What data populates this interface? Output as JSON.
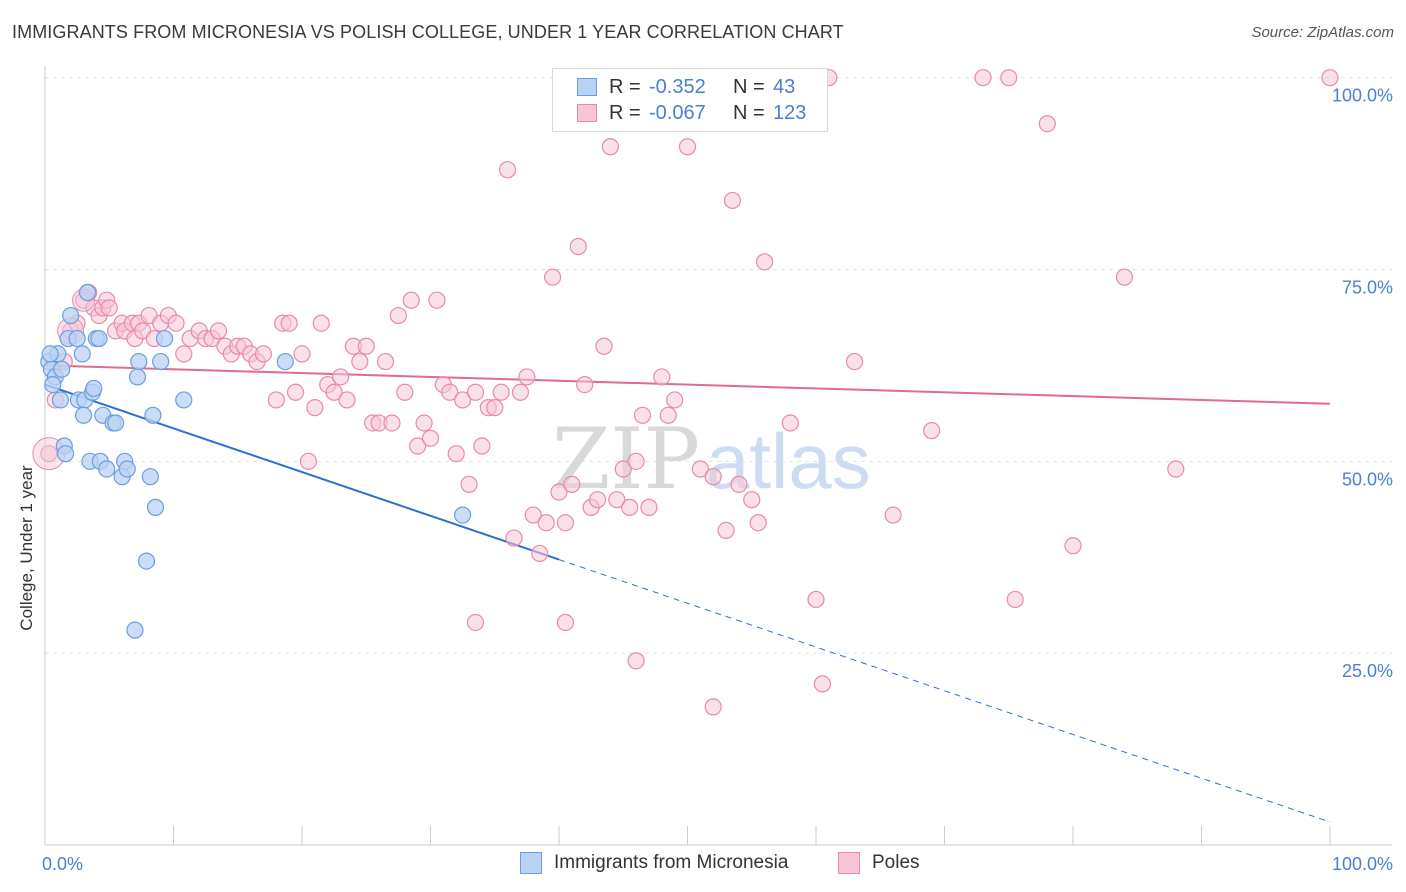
{
  "chart_data": {
    "type": "scatter",
    "title": "IMMIGRANTS FROM MICRONESIA VS POLISH COLLEGE, UNDER 1 YEAR CORRELATION CHART",
    "source": "Source: ZipAtlas.com",
    "xlabel": "",
    "ylabel": "College, Under 1 year",
    "xlim": [
      0,
      100
    ],
    "ylim": [
      0,
      101
    ],
    "x_tick_labels": [
      "0.0%",
      "100.0%"
    ],
    "y_ticks": [
      25,
      50,
      75,
      100
    ],
    "y_tick_labels": [
      "25.0%",
      "50.0%",
      "75.0%",
      "100.0%"
    ],
    "watermark": {
      "zip": "ZIP",
      "atlas": "atlas"
    },
    "legend": {
      "rows": [
        {
          "r_label": "R =",
          "r_value": "-0.352",
          "n_label": "N =",
          "n_value": "43"
        },
        {
          "r_label": "R =",
          "r_value": "-0.067",
          "n_label": "N =",
          "n_value": "123"
        }
      ]
    },
    "series": [
      {
        "name": "Immigrants from Micronesia",
        "color": "#6a9ee0",
        "fill": "#b9d1f3",
        "trend": {
          "x0": 0,
          "y0": 60,
          "x1": 40,
          "y1": 37.2,
          "dash_x1": 100,
          "dash_y1": 3.0,
          "color": "#2f6fd1"
        },
        "points": [
          [
            0.3,
            63
          ],
          [
            0.5,
            62
          ],
          [
            0.8,
            61
          ],
          [
            1.0,
            64
          ],
          [
            1.3,
            62
          ],
          [
            0.6,
            60
          ],
          [
            1.5,
            52
          ],
          [
            1.6,
            51
          ],
          [
            1.8,
            66
          ],
          [
            2.0,
            69
          ],
          [
            2.5,
            66
          ],
          [
            2.6,
            58
          ],
          [
            2.9,
            64
          ],
          [
            3.1,
            58
          ],
          [
            3.0,
            56
          ],
          [
            3.3,
            72
          ],
          [
            3.5,
            50
          ],
          [
            3.7,
            59
          ],
          [
            3.8,
            59.5
          ],
          [
            4.0,
            66
          ],
          [
            4.2,
            66
          ],
          [
            4.3,
            50
          ],
          [
            4.5,
            56
          ],
          [
            4.8,
            49
          ],
          [
            5.3,
            55
          ],
          [
            5.5,
            55
          ],
          [
            6.0,
            48
          ],
          [
            6.2,
            50
          ],
          [
            6.4,
            49
          ],
          [
            7.0,
            28
          ],
          [
            7.2,
            61
          ],
          [
            7.3,
            63
          ],
          [
            7.9,
            37
          ],
          [
            8.2,
            48
          ],
          [
            8.4,
            56
          ],
          [
            8.6,
            44
          ],
          [
            9.0,
            63
          ],
          [
            9.3,
            66
          ],
          [
            10.8,
            58
          ],
          [
            18.7,
            63
          ],
          [
            32.5,
            43
          ],
          [
            0.4,
            64
          ],
          [
            1.2,
            58
          ]
        ]
      },
      {
        "name": "Poles",
        "color": "#e88aaa",
        "fill": "#f6c6d6",
        "trend": {
          "x0": 0,
          "y0": 62.5,
          "x1": 100,
          "y1": 57.5,
          "color": "#e06a92"
        },
        "points": [
          [
            0.3,
            51
          ],
          [
            0.8,
            58
          ],
          [
            1.5,
            63
          ],
          [
            2.0,
            67
          ],
          [
            2.5,
            68
          ],
          [
            3.0,
            71
          ],
          [
            3.4,
            72
          ],
          [
            3.8,
            70
          ],
          [
            4.2,
            69
          ],
          [
            4.5,
            70
          ],
          [
            4.8,
            71
          ],
          [
            5.0,
            70
          ],
          [
            5.5,
            67
          ],
          [
            6.0,
            68
          ],
          [
            6.2,
            67
          ],
          [
            6.8,
            68
          ],
          [
            7.0,
            66
          ],
          [
            7.3,
            68
          ],
          [
            7.6,
            67
          ],
          [
            8.1,
            69
          ],
          [
            8.5,
            66
          ],
          [
            9.0,
            68
          ],
          [
            9.6,
            69
          ],
          [
            10.2,
            68
          ],
          [
            10.8,
            64
          ],
          [
            11.3,
            66
          ],
          [
            12.0,
            67
          ],
          [
            12.5,
            66
          ],
          [
            13.0,
            66
          ],
          [
            13.5,
            67
          ],
          [
            14.0,
            65
          ],
          [
            14.5,
            64
          ],
          [
            15.0,
            65
          ],
          [
            15.5,
            65
          ],
          [
            16.0,
            64
          ],
          [
            16.5,
            63
          ],
          [
            17.0,
            64
          ],
          [
            18.0,
            58
          ],
          [
            18.5,
            68
          ],
          [
            19.0,
            68
          ],
          [
            19.5,
            59
          ],
          [
            20.0,
            64
          ],
          [
            20.5,
            50
          ],
          [
            21.0,
            57
          ],
          [
            21.5,
            68
          ],
          [
            22.0,
            60
          ],
          [
            22.5,
            59
          ],
          [
            23.0,
            61
          ],
          [
            23.5,
            58
          ],
          [
            24.0,
            65
          ],
          [
            24.5,
            63
          ],
          [
            25.0,
            65
          ],
          [
            25.5,
            55
          ],
          [
            26.0,
            55
          ],
          [
            26.5,
            63
          ],
          [
            27.0,
            55
          ],
          [
            27.5,
            69
          ],
          [
            28.0,
            59
          ],
          [
            28.5,
            71
          ],
          [
            29.0,
            52
          ],
          [
            29.5,
            55
          ],
          [
            30.0,
            53
          ],
          [
            30.5,
            71
          ],
          [
            31.0,
            60
          ],
          [
            31.5,
            59
          ],
          [
            32.0,
            51
          ],
          [
            32.5,
            58
          ],
          [
            33.0,
            47
          ],
          [
            33.5,
            59
          ],
          [
            34.0,
            52
          ],
          [
            34.5,
            57
          ],
          [
            35.0,
            57
          ],
          [
            35.5,
            59
          ],
          [
            36.0,
            88
          ],
          [
            36.5,
            40
          ],
          [
            37.0,
            59
          ],
          [
            37.5,
            61
          ],
          [
            38.0,
            43
          ],
          [
            38.5,
            38
          ],
          [
            39.0,
            42
          ],
          [
            39.5,
            74
          ],
          [
            40.0,
            46
          ],
          [
            40.5,
            42
          ],
          [
            41.0,
            47
          ],
          [
            41.5,
            78
          ],
          [
            42.0,
            60
          ],
          [
            42.5,
            44
          ],
          [
            43.0,
            45
          ],
          [
            43.5,
            65
          ],
          [
            44.0,
            91
          ],
          [
            44.5,
            45
          ],
          [
            45.0,
            49
          ],
          [
            45.5,
            44
          ],
          [
            46.0,
            50
          ],
          [
            46.5,
            56
          ],
          [
            47.0,
            44
          ],
          [
            48.0,
            61
          ],
          [
            48.5,
            56
          ],
          [
            49.0,
            58
          ],
          [
            50.0,
            91
          ],
          [
            51.0,
            49
          ],
          [
            52.0,
            48
          ],
          [
            53.0,
            41
          ],
          [
            53.5,
            84
          ],
          [
            54.0,
            47
          ],
          [
            55.0,
            45
          ],
          [
            55.5,
            42
          ],
          [
            56.0,
            76
          ],
          [
            58.0,
            55
          ],
          [
            60.0,
            32
          ],
          [
            61.0,
            100
          ],
          [
            63.0,
            63
          ],
          [
            66.0,
            43
          ],
          [
            69.0,
            54
          ],
          [
            73.0,
            100
          ],
          [
            75.0,
            100
          ],
          [
            75.5,
            32
          ],
          [
            78.0,
            94
          ],
          [
            80.0,
            39
          ],
          [
            84.0,
            74
          ],
          [
            88.0,
            49
          ],
          [
            100.0,
            100
          ],
          [
            33.5,
            29
          ]
        ],
        "extra_points": [
          [
            40.5,
            29
          ],
          [
            46.0,
            24
          ],
          [
            52.0,
            18
          ],
          [
            60.5,
            21
          ]
        ]
      }
    ]
  },
  "bottom_legend": {
    "items": [
      {
        "label": "Immigrants from Micronesia"
      },
      {
        "label": "Poles"
      }
    ]
  }
}
